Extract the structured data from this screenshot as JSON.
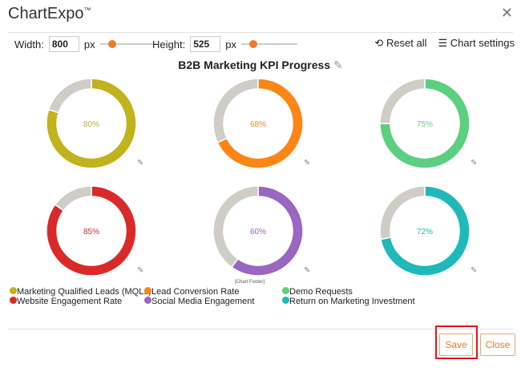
{
  "app": {
    "title": "ChartExpo",
    "tm": "™",
    "close_icon": "close-icon"
  },
  "toolbar": {
    "width_label": "Width:",
    "width_value": "800",
    "width_unit": "px",
    "height_label": "Height:",
    "height_value": "525",
    "height_unit": "px",
    "reset_label": "Reset all",
    "settings_label": "Chart settings"
  },
  "chart_footer": "[Chart Footer]",
  "buttons": {
    "save": "Save",
    "close": "Close"
  },
  "chart_data": {
    "type": "donut",
    "title": "B2B Marketing KPI Progress",
    "remainder_color": "#d0ccc6",
    "series": [
      {
        "name": "Marketing Qualified Leads (MQLs)",
        "value": 80,
        "label": "80%",
        "color": "#c2b21c"
      },
      {
        "name": "Lead Conversion Rate",
        "value": 68,
        "label": "68%",
        "color": "#fb8515"
      },
      {
        "name": "Demo Requests",
        "value": 75,
        "label": "75%",
        "color": "#5ccf80"
      },
      {
        "name": "Website Engagement Rate",
        "value": 85,
        "label": "85%",
        "color": "#d92a2a"
      },
      {
        "name": "Social Media Engagement",
        "value": 60,
        "label": "60%",
        "color": "#9966c2"
      },
      {
        "name": "Return on Marketing Investment",
        "value": 72,
        "label": "72%",
        "color": "#1fb9b9"
      }
    ],
    "legend_placement": "bottom-left"
  }
}
